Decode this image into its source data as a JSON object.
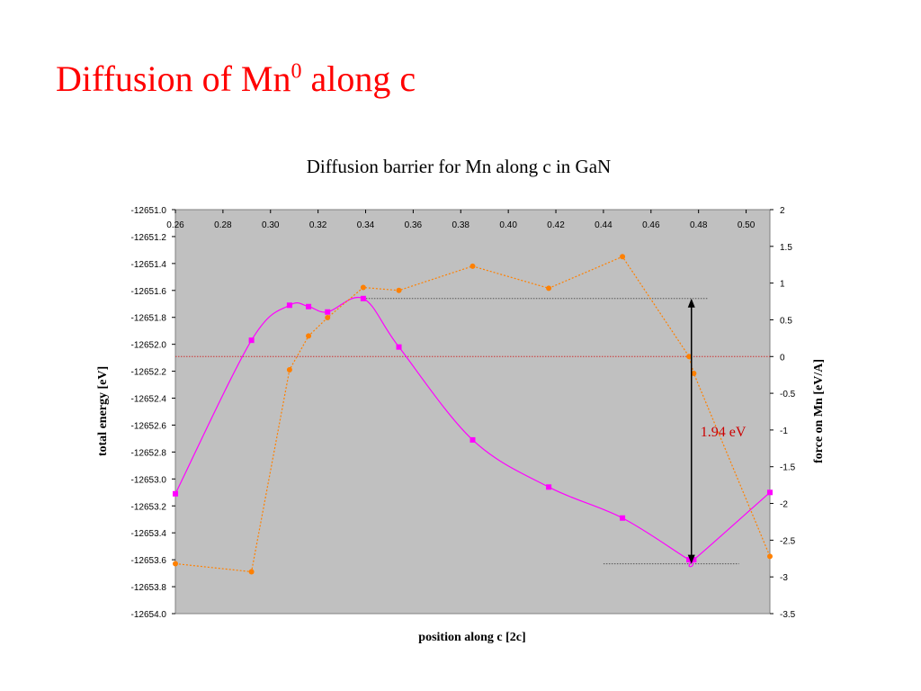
{
  "slide": {
    "title_prefix": "Diffusion of Mn",
    "title_superscript": "0",
    "title_suffix": " along c",
    "title_color": "#ff0000"
  },
  "chart_data": {
    "type": "line",
    "title": "Diffusion barrier for Mn along c in GaN",
    "xlabel": "position along c [2c]",
    "ylabel_left": "total energy [eV]",
    "ylabel_right": "force on Mn [eV/A]",
    "x_ticks": [
      "0.26",
      "0.28",
      "0.30",
      "0.32",
      "0.34",
      "0.36",
      "0.38",
      "0.40",
      "0.42",
      "0.44",
      "0.46",
      "0.48",
      "0.50"
    ],
    "xlim": [
      0.26,
      0.51
    ],
    "ylim_left": [
      -12654.0,
      -12651.0
    ],
    "y_ticks_left": [
      "-12651.0",
      "-12651.2",
      "-12651.4",
      "-12651.6",
      "-12651.8",
      "-12652.0",
      "-12652.2",
      "-12652.4",
      "-12652.6",
      "-12652.8",
      "-12653.0",
      "-12653.2",
      "-12653.4",
      "-12653.6",
      "-12653.8",
      "-12654.0"
    ],
    "ylim_right": [
      -3.5,
      2
    ],
    "y_ticks_right": [
      "2",
      "1.5",
      "1",
      "0.5",
      "0",
      "-0.5",
      "-1",
      "-1.5",
      "-2",
      "-2.5",
      "-3",
      "-3.5"
    ],
    "plot_background": "#c0c0c0",
    "grid": false,
    "legend": "none",
    "series": [
      {
        "axis": "left",
        "color": "#ff00ff",
        "style": "solid",
        "marker": "square",
        "x": [
          0.26,
          0.292,
          0.308,
          0.316,
          0.324,
          0.339,
          0.354,
          0.385,
          0.417,
          0.448,
          0.476,
          0.478,
          0.51
        ],
        "y": [
          -12653.11,
          -12651.97,
          -12651.71,
          -12651.72,
          -12651.76,
          -12651.66,
          -12652.02,
          -12652.71,
          -12653.06,
          -12653.29,
          -12653.6,
          -12653.6,
          -12653.1
        ]
      },
      {
        "axis": "right",
        "color": "#ff8000",
        "style": "dotted",
        "marker": "circle",
        "x": [
          0.26,
          0.292,
          0.308,
          0.316,
          0.324,
          0.339,
          0.354,
          0.385,
          0.417,
          0.448,
          0.476,
          0.478,
          0.51
        ],
        "y": [
          -2.82,
          -2.93,
          -0.18,
          0.28,
          0.53,
          0.94,
          0.9,
          1.23,
          0.93,
          1.36,
          0.0,
          -0.23,
          -2.72
        ]
      }
    ],
    "reference_lines": [
      {
        "axis": "left",
        "value": -12651.66,
        "x_from": 0.339,
        "x_to": 0.484,
        "color": "#555555",
        "style": "dotted"
      },
      {
        "axis": "left",
        "value": -12653.63,
        "x_from": 0.44,
        "x_to": 0.497,
        "color": "#555555",
        "style": "dotted"
      },
      {
        "axis": "right",
        "value": 0,
        "x_from": 0.26,
        "x_to": 0.51,
        "color": "#cc3333",
        "style": "dotted"
      }
    ],
    "annotation": {
      "text": "1.94 eV",
      "color": "#cc0000",
      "arrow_x": 0.477,
      "arrow_from": -12651.66,
      "arrow_to": -12653.63
    }
  }
}
